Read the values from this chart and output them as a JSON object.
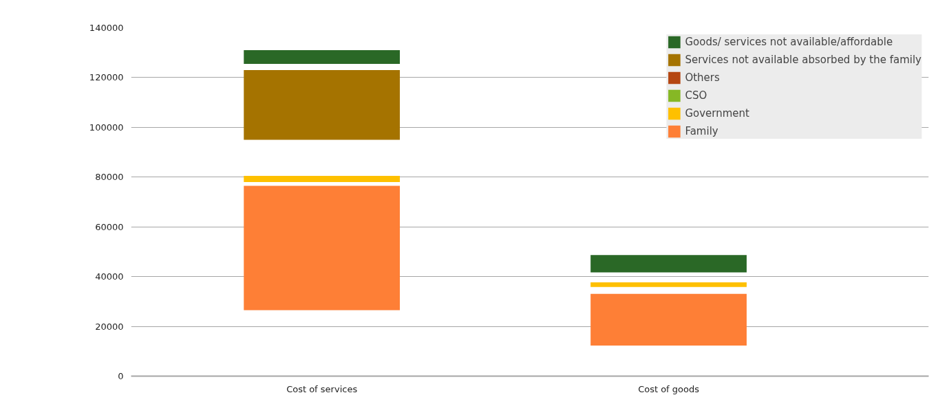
{
  "chart_data": {
    "type": "bar",
    "categories": [
      "Cost of services",
      "Cost of goods"
    ],
    "series": [
      {
        "name": "Family",
        "color": "#fe7f36",
        "base": [
          26500,
          12300
        ],
        "values": [
          50000,
          20800
        ]
      },
      {
        "name": "Government",
        "color": "#fec000",
        "base": [
          78000,
          35800
        ],
        "values": [
          2500,
          1900
        ]
      },
      {
        "name": "CSO",
        "color": "#86b825",
        "base": [
          null,
          null
        ],
        "values": [
          null,
          null
        ]
      },
      {
        "name": "Others",
        "color": "#b54611",
        "base": [
          null,
          null
        ],
        "values": [
          null,
          null
        ]
      },
      {
        "name": "Services not available absorbed by the family",
        "color": "#a57300",
        "base": [
          95000,
          null
        ],
        "values": [
          28000,
          null
        ]
      },
      {
        "name": "Goods/ services not available/affordable",
        "color": "#2a6826",
        "base": [
          125500,
          41700
        ],
        "values": [
          5500,
          7000
        ]
      }
    ],
    "ylim": [
      0,
      140000
    ],
    "yticks": [
      0,
      20000,
      40000,
      60000,
      80000,
      100000,
      120000,
      140000
    ],
    "grid": "y",
    "legend": "top right"
  }
}
